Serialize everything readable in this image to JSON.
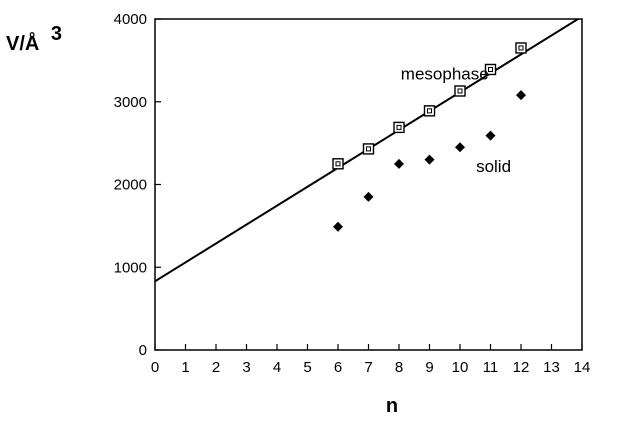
{
  "chart_data": {
    "type": "scatter",
    "xlabel": "n",
    "ylabel": {
      "main": "V/Å",
      "exponent": "3"
    },
    "xlim": [
      0,
      14
    ],
    "ylim": [
      0,
      4000
    ],
    "xticks": [
      0,
      1,
      2,
      3,
      4,
      5,
      6,
      7,
      8,
      9,
      10,
      11,
      12,
      13,
      14
    ],
    "yticks": [
      0,
      1000,
      2000,
      3000,
      4000
    ],
    "grid": false,
    "series": [
      {
        "marker": "open-square",
        "x": [
          6,
          7,
          8,
          9,
          10,
          11,
          12
        ],
        "y": [
          2250,
          2430,
          2690,
          2890,
          3130,
          3390,
          3650
        ]
      },
      {
        "marker": "filled-diamond",
        "x": [
          6,
          7,
          8,
          9,
          10,
          11,
          12
        ],
        "y": [
          1490,
          1850,
          2250,
          2300,
          2450,
          2590,
          3080
        ]
      }
    ],
    "fit_line": {
      "x": [
        0,
        14
      ],
      "y": [
        830,
        4030
      ]
    },
    "annotations": [
      {
        "text": "mesophase",
        "x": 9.5,
        "y": 3270
      },
      {
        "text": "solid",
        "x": 11.1,
        "y": 2150
      }
    ]
  }
}
